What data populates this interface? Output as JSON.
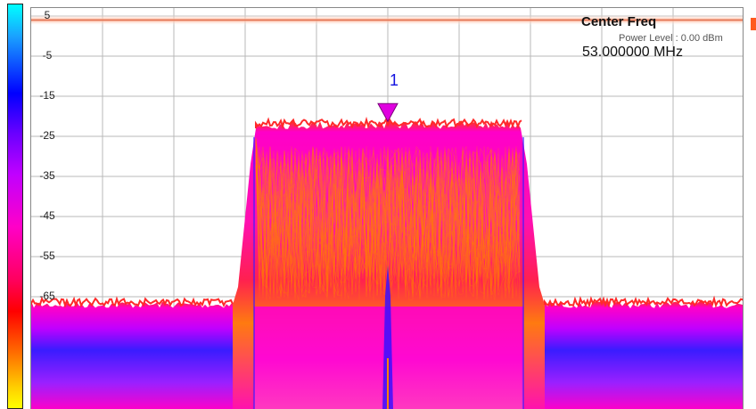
{
  "y_axis": {
    "ticks": [
      "5",
      "-5",
      "-15",
      "-25",
      "-35",
      "-45",
      "-55",
      "-65"
    ]
  },
  "readout": {
    "title": "Center Freq",
    "power_level": "Power Level : 0.00 dBm",
    "value": "53.000000 MHz"
  },
  "marker": {
    "label": "1",
    "color": "#e000e0"
  },
  "colors": {
    "trace_top": "#ff2a2a",
    "trace_orange": "#ff8000",
    "trace_magenta": "#ff00c8",
    "trace_blue": "#3a1cff",
    "reference_band": "#ffd2c0",
    "grid": "#b8b8b8"
  },
  "chart_data": {
    "type": "area",
    "yunit": "dBm",
    "ylim": [
      -75,
      7
    ],
    "grid": true,
    "noise_floor_dbm": -67,
    "signal_plateau_dbm": -23,
    "reference_line_dbm": 4,
    "marker_level_dbm": -19.5
  }
}
